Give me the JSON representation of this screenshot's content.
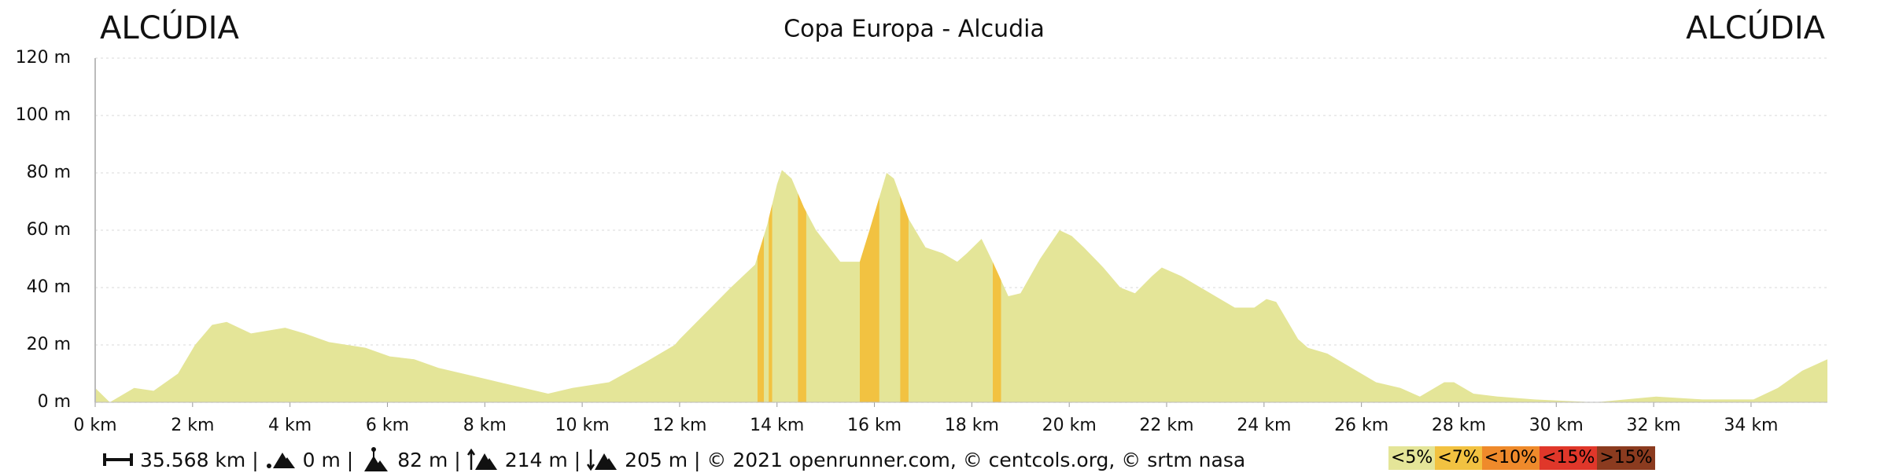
{
  "chart_data": {
    "type": "area",
    "title": "Copa Europa - Alcudia",
    "start_label": "ALCÚDIA",
    "end_label": "ALCÚDIA",
    "x": [
      0,
      0.3,
      0.8,
      1.2,
      1.7,
      2.05,
      2.4,
      2.7,
      3.2,
      3.9,
      4.3,
      4.8,
      5.55,
      6.05,
      6.55,
      7.05,
      8.05,
      8.8,
      9.3,
      9.8,
      10.55,
      11.3,
      11.9,
      12,
      13.05,
      13.55,
      13.8,
      14,
      14.1,
      14.3,
      14.55,
      14.8,
      15.3,
      15.7,
      15.9,
      16.25,
      16.4,
      16.7,
      17.05,
      17.4,
      17.7,
      17.9,
      18.2,
      18.4,
      18.75,
      19,
      19.4,
      19.8,
      20.05,
      20.3,
      20.7,
      21.05,
      21.35,
      21.7,
      21.9,
      22.3,
      22.8,
      23.4,
      23.8,
      24.05,
      24.25,
      24.7,
      24.9,
      25.3,
      25.8,
      26.3,
      26.8,
      27.2,
      27.7,
      27.9,
      28.3,
      28.8,
      29.55,
      30.8,
      32.05,
      33,
      34.05,
      34.55,
      35.05,
      35.568
    ],
    "values": [
      5,
      0,
      5,
      4,
      10,
      20,
      27,
      28,
      24,
      26,
      24,
      21,
      19,
      16,
      15,
      12,
      8,
      5,
      3,
      5,
      7,
      14,
      20,
      22,
      40,
      48,
      62,
      76,
      81,
      78,
      68,
      60,
      49,
      49,
      60,
      80,
      78,
      64,
      54,
      52,
      49,
      52,
      57,
      50,
      37,
      38,
      50,
      60,
      58,
      54,
      47,
      40,
      38,
      44,
      47,
      44,
      39,
      33,
      33,
      36,
      35,
      22,
      19,
      17,
      12,
      7,
      5,
      2,
      7,
      7,
      3,
      2,
      1,
      0,
      2,
      1,
      1,
      5,
      11,
      15
    ],
    "color": "#e4e598",
    "steep_sections": [
      [
        13.6,
        13.73
      ],
      [
        13.83,
        13.9
      ],
      [
        14.43,
        14.6
      ],
      [
        15.7,
        16.1
      ],
      [
        16.53,
        16.7
      ],
      [
        18.43,
        18.6
      ]
    ],
    "steep_color": "#f2c241",
    "xlim": [
      0,
      35.568
    ],
    "ylim": [
      0,
      120
    ],
    "xticks": [
      {
        "value": 0,
        "label": "0 km"
      },
      {
        "value": 2,
        "label": "2 km"
      },
      {
        "value": 4,
        "label": "4 km"
      },
      {
        "value": 6,
        "label": "6 km"
      },
      {
        "value": 8,
        "label": "8 km"
      },
      {
        "value": 10,
        "label": "10 km"
      },
      {
        "value": 12,
        "label": "12 km"
      },
      {
        "value": 14,
        "label": "14 km"
      },
      {
        "value": 16,
        "label": "16 km"
      },
      {
        "value": 18,
        "label": "18 km"
      },
      {
        "value": 20,
        "label": "20 km"
      },
      {
        "value": 22,
        "label": "22 km"
      },
      {
        "value": 24,
        "label": "24 km"
      },
      {
        "value": 26,
        "label": "26 km"
      },
      {
        "value": 28,
        "label": "28 km"
      },
      {
        "value": 30,
        "label": "30 km"
      },
      {
        "value": 32,
        "label": "32 km"
      },
      {
        "value": 34,
        "label": "34 km"
      }
    ],
    "yticks": [
      {
        "value": 0,
        "label": "0 m"
      },
      {
        "value": 20,
        "label": "20 m"
      },
      {
        "value": 40,
        "label": "40 m"
      },
      {
        "value": 60,
        "label": "60 m"
      },
      {
        "value": 80,
        "label": "80 m"
      },
      {
        "value": 100,
        "label": "100 m"
      },
      {
        "value": 120,
        "label": "120 m"
      }
    ],
    "grid": true,
    "legend": [
      {
        "name": "<5%",
        "color": "#e4e598"
      },
      {
        "name": "<7%",
        "color": "#f2c241"
      },
      {
        "name": "<10%",
        "color": "#ef8a2b"
      },
      {
        "name": "<15%",
        "color": "#e0372a"
      },
      {
        "name": ">15%",
        "color": "#8b3b1f"
      }
    ],
    "footer": {
      "distance": "35.568 km |",
      "min": "0 m |",
      "max": "82 m |",
      "ascent": "214 m |",
      "descent": "205 m | © 2021 openrunner.com, © centcols.org, © srtm nasa"
    }
  }
}
